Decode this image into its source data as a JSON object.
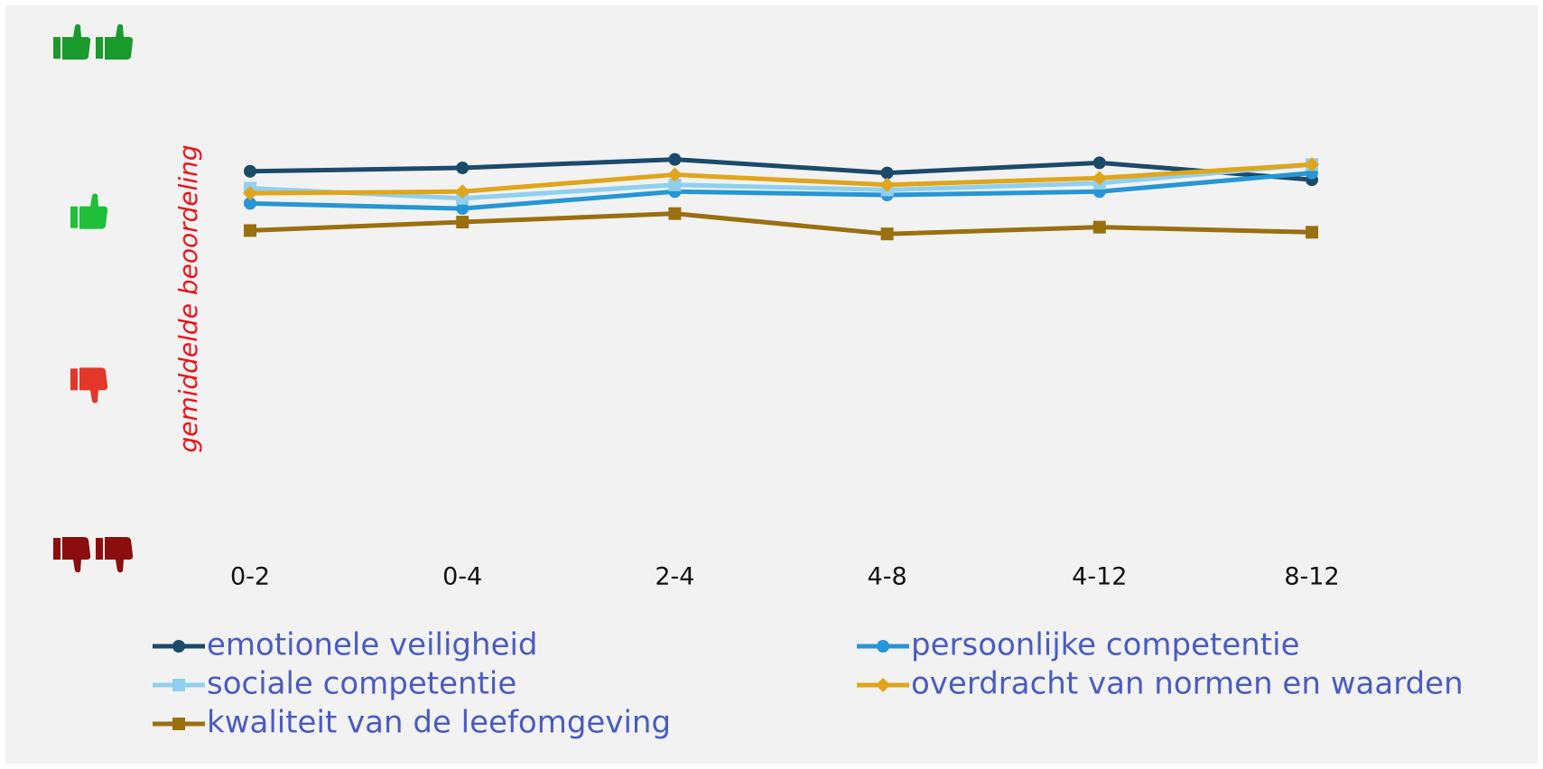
{
  "chart_data": {
    "type": "line",
    "y_label": "gemiddelde beoordeling",
    "categories": [
      "0-2",
      "0-4",
      "2-4",
      "4-8",
      "4-12",
      "8-12"
    ],
    "ylim": [
      1,
      4
    ],
    "yticks": [
      1,
      2,
      3,
      4
    ],
    "series": [
      {
        "name": "emotionele veiligheid",
        "color": "#1b4a6b",
        "marker": "circle",
        "values": [
          3.25,
          3.27,
          3.32,
          3.24,
          3.3,
          3.2
        ]
      },
      {
        "name": "persoonlijke competentie",
        "color": "#2596d6",
        "marker": "circle",
        "values": [
          3.06,
          3.03,
          3.13,
          3.11,
          3.13,
          3.24
        ]
      },
      {
        "name": "sociale competentie",
        "color": "#8fd0ef",
        "marker": "square",
        "values": [
          3.15,
          3.09,
          3.17,
          3.14,
          3.18,
          3.29
        ]
      },
      {
        "name": "overdracht van normen en waarden",
        "color": "#e0a51a",
        "marker": "diamond",
        "values": [
          3.12,
          3.13,
          3.23,
          3.17,
          3.21,
          3.29
        ]
      },
      {
        "name": "kwaliteit van de leefomgeving",
        "color": "#9a6f0f",
        "marker": "square",
        "values": [
          2.9,
          2.95,
          3.0,
          2.88,
          2.92,
          2.89
        ]
      }
    ]
  }
}
